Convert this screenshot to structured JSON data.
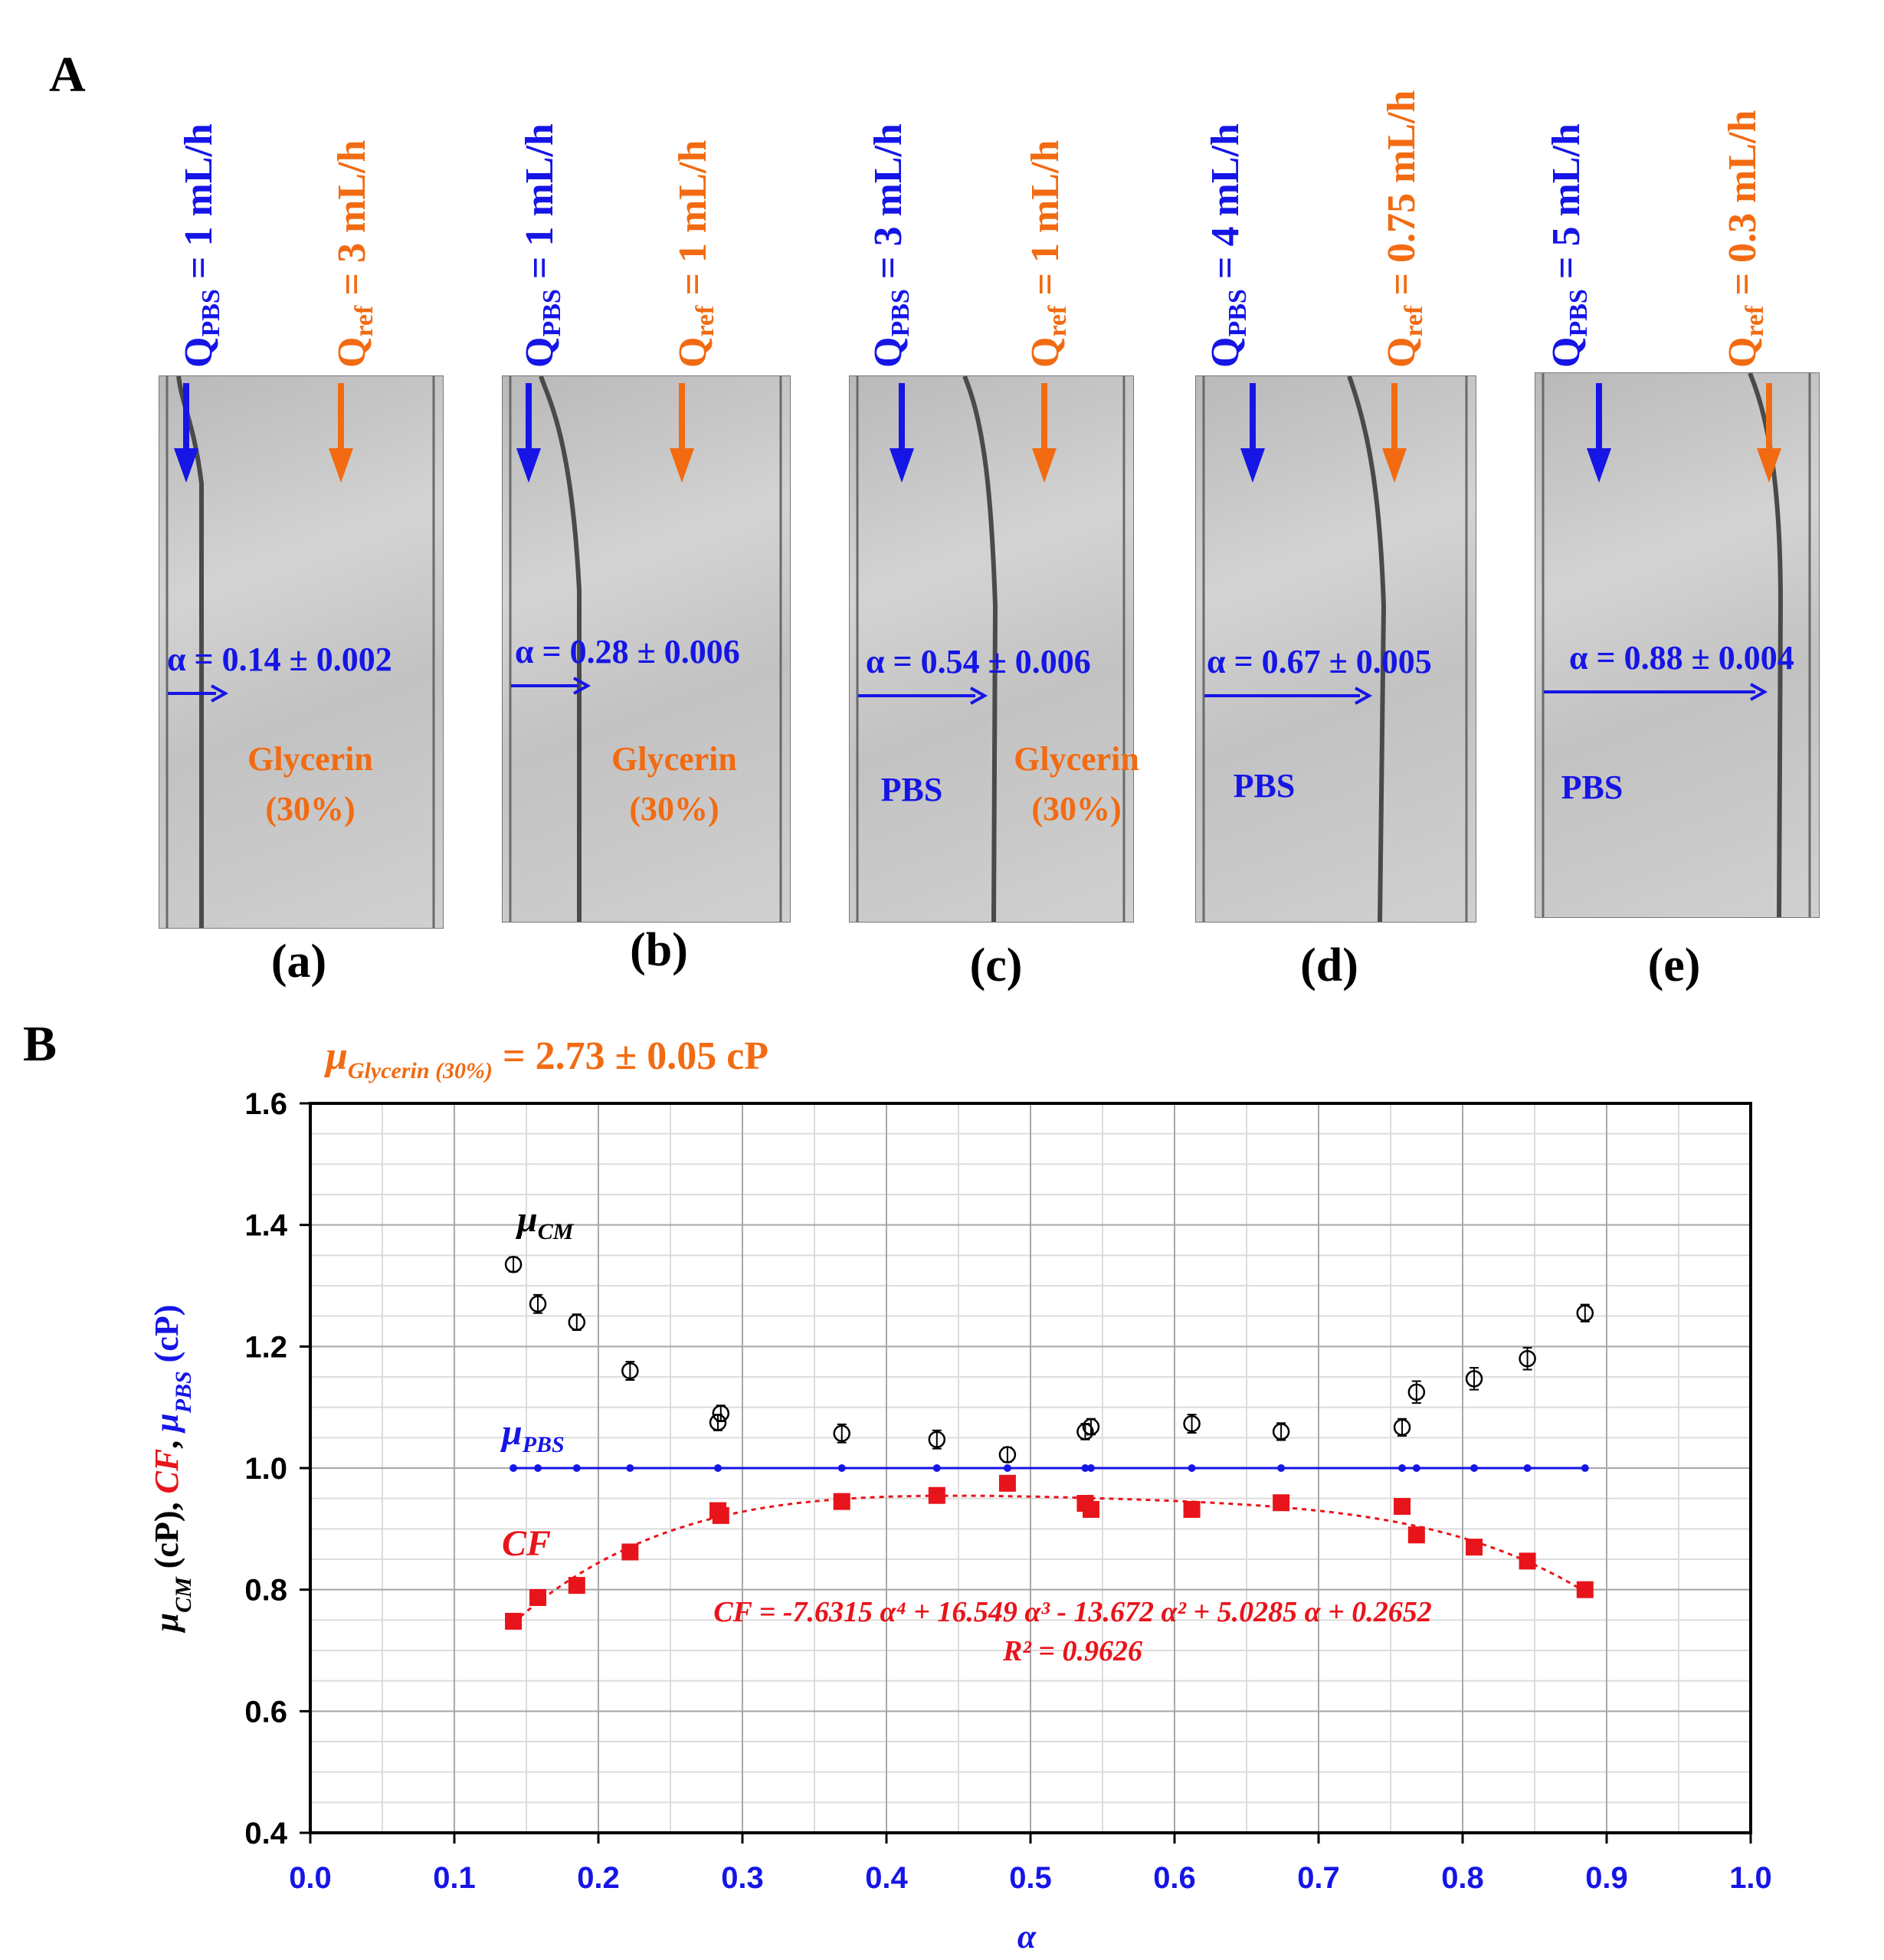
{
  "figure": {
    "panel_a_letter": "A",
    "panel_b_letter": "B"
  },
  "panels": [
    {
      "id": "a",
      "label": "(a)",
      "q_pbs": "= 1 mL/h",
      "q_ref": "= 3 mL/h",
      "alpha": "α = 0.14 ± 0.002",
      "fluids": [
        {
          "text": "Glycerin",
          "color": "orange"
        },
        {
          "text": "(30%)",
          "color": "orange"
        }
      ]
    },
    {
      "id": "b",
      "label": "(b)",
      "q_pbs": "= 1 mL/h",
      "q_ref": "= 1 mL/h",
      "alpha": "α = 0.28 ± 0.006",
      "fluids": [
        {
          "text": "Glycerin",
          "color": "orange"
        },
        {
          "text": "(30%)",
          "color": "orange"
        }
      ]
    },
    {
      "id": "c",
      "label": "(c)",
      "q_pbs": "= 3 mL/h",
      "q_ref": "= 1 mL/h",
      "alpha": "α = 0.54 ± 0.006",
      "fluids": [
        {
          "text": "PBS",
          "color": "blue"
        },
        {
          "text": "Glycerin",
          "color": "orange"
        },
        {
          "text": "(30%)",
          "color": "orange"
        }
      ]
    },
    {
      "id": "d",
      "label": "(d)",
      "q_pbs": "= 4 mL/h",
      "q_ref": "= 0.75 mL/h",
      "alpha": "α = 0.67 ± 0.005",
      "fluids": [
        {
          "text": "PBS",
          "color": "blue"
        }
      ]
    },
    {
      "id": "e",
      "label": "(e)",
      "q_pbs": "= 5 mL/h",
      "q_ref": "= 0.3 mL/h",
      "alpha": "α = 0.88 ± 0.004",
      "fluids": [
        {
          "text": "PBS",
          "color": "blue"
        }
      ]
    }
  ],
  "flow_labels": {
    "q_main": "Q",
    "pbs_sub": "PBS",
    "ref_sub": "ref"
  },
  "colors": {
    "blue": "#1515e6",
    "orange": "#f26b12",
    "red": "#e8141b",
    "black": "#000000"
  },
  "chart_data": {
    "type": "scatter",
    "title_prefix": "μ",
    "title_sub": "Glycerin (30%)",
    "title_value": "= 2.73 ± 0.05 cP",
    "xlabel": "α",
    "ylabel_parts": [
      {
        "text": "μ",
        "color": "black",
        "italic": true
      },
      {
        "text": "CM",
        "color": "black",
        "italic": true,
        "sub": true
      },
      {
        "text": " (cP), ",
        "color": "black"
      },
      {
        "text": "CF",
        "color": "red",
        "italic": true
      },
      {
        "text": ", ",
        "color": "black"
      },
      {
        "text": "μ",
        "color": "blue",
        "italic": true
      },
      {
        "text": "PBS",
        "color": "blue",
        "italic": true,
        "sub": true
      },
      {
        "text": " (cP)",
        "color": "blue"
      }
    ],
    "xlim": [
      0.0,
      1.0
    ],
    "ylim": [
      0.4,
      1.6
    ],
    "x_ticks": [
      "0.0",
      "0.1",
      "0.2",
      "0.3",
      "0.4",
      "0.5",
      "0.6",
      "0.7",
      "0.8",
      "0.9",
      "1.0"
    ],
    "y_ticks": [
      "0.4",
      "0.6",
      "0.8",
      "1.0",
      "1.2",
      "1.4",
      "1.6"
    ],
    "series": [
      {
        "name": "μCM",
        "label_main": "μ",
        "label_sub": "CM",
        "color": "black",
        "marker": "open-circle-errorbar",
        "x": [
          0.141,
          0.158,
          0.185,
          0.222,
          0.283,
          0.285,
          0.369,
          0.435,
          0.484,
          0.538,
          0.542,
          0.612,
          0.674,
          0.758,
          0.768,
          0.808,
          0.845,
          0.885
        ],
        "y": [
          1.335,
          1.27,
          1.24,
          1.16,
          1.075,
          1.09,
          1.057,
          1.047,
          1.022,
          1.06,
          1.068,
          1.073,
          1.06,
          1.067,
          1.125,
          1.147,
          1.18,
          1.255
        ],
        "err": [
          0.012,
          0.015,
          0.013,
          0.015,
          0.013,
          0.013,
          0.015,
          0.015,
          0.012,
          0.013,
          0.013,
          0.015,
          0.014,
          0.014,
          0.018,
          0.018,
          0.018,
          0.014
        ]
      },
      {
        "name": "μPBS",
        "label_main": "μ",
        "label_sub": "PBS",
        "color": "blue",
        "marker": "small-dot-line",
        "x": [
          0.141,
          0.158,
          0.185,
          0.222,
          0.283,
          0.369,
          0.435,
          0.484,
          0.538,
          0.542,
          0.612,
          0.674,
          0.758,
          0.768,
          0.808,
          0.845,
          0.885
        ],
        "y": [
          1.0,
          1.0,
          1.0,
          1.0,
          1.0,
          1.0,
          1.0,
          1.0,
          1.0,
          1.0,
          1.0,
          1.0,
          1.0,
          1.0,
          1.0,
          1.0,
          1.0
        ]
      },
      {
        "name": "CF",
        "label_main": "CF",
        "color": "red",
        "marker": "filled-square",
        "x": [
          0.141,
          0.158,
          0.185,
          0.222,
          0.283,
          0.285,
          0.369,
          0.435,
          0.484,
          0.538,
          0.542,
          0.612,
          0.674,
          0.758,
          0.768,
          0.808,
          0.845,
          0.885
        ],
        "y": [
          0.748,
          0.787,
          0.807,
          0.862,
          0.93,
          0.922,
          0.945,
          0.955,
          0.975,
          0.942,
          0.932,
          0.932,
          0.943,
          0.937,
          0.89,
          0.87,
          0.847,
          0.8
        ]
      }
    ],
    "fit": {
      "color": "red",
      "style": "dashed",
      "coefficients": [
        -7.6315,
        16.549,
        -13.672,
        5.0285,
        0.2652
      ],
      "x_range": [
        0.141,
        0.885
      ],
      "equation_text": "CF = -7.6315 α⁴ + 16.549 α³ - 13.672 α² + 5.0285 α + 0.2652",
      "r2_text": "R² = 0.9626"
    }
  }
}
